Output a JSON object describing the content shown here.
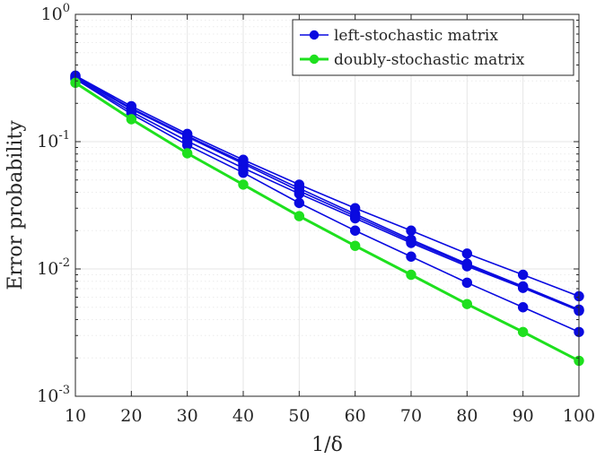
{
  "chart_data": {
    "type": "line",
    "yscale": "log",
    "xlabel": "1/δ",
    "ylabel": "Error probability",
    "xlim": [
      10,
      100
    ],
    "ylim": [
      0.001,
      1
    ],
    "grid": true,
    "legend_placement": "top-right",
    "x": [
      10,
      20,
      30,
      40,
      50,
      60,
      70,
      80,
      90,
      100
    ],
    "xticks": [
      "10",
      "20",
      "30",
      "40",
      "50",
      "60",
      "70",
      "80",
      "90",
      "100"
    ],
    "yticks": [
      {
        "value": 1,
        "base": "10",
        "exp": "0"
      },
      {
        "value": 0.1,
        "base": "10",
        "exp": "-1"
      },
      {
        "value": 0.01,
        "base": "10",
        "exp": "-2"
      },
      {
        "value": 0.001,
        "base": "10",
        "exp": "-3"
      }
    ],
    "legend": [
      {
        "label": "left-stochastic matrix",
        "color": "#0a0ae0"
      },
      {
        "label": "doubly-stochastic matrix",
        "color": "#1ee01e"
      }
    ],
    "series": [
      {
        "name": "left-stochastic matrix",
        "color": "#0a0ae0",
        "values": [
          0.33,
          0.19,
          0.115,
          0.072,
          0.046,
          0.03,
          0.02,
          0.0132,
          0.009,
          0.0061
        ]
      },
      {
        "name": "left-stochastic matrix",
        "color": "#0a0ae0",
        "values": [
          0.325,
          0.183,
          0.111,
          0.069,
          0.043,
          0.027,
          0.017,
          0.011,
          0.0073,
          0.0048
        ]
      },
      {
        "name": "left-stochastic matrix",
        "color": "#0a0ae0",
        "values": [
          0.32,
          0.18,
          0.109,
          0.067,
          0.041,
          0.026,
          0.0165,
          0.0108,
          0.0072,
          0.0047
        ]
      },
      {
        "name": "left-stochastic matrix",
        "color": "#0a0ae0",
        "values": [
          0.315,
          0.172,
          0.101,
          0.062,
          0.039,
          0.025,
          0.016,
          0.0105,
          0.0071,
          0.0047
        ]
      },
      {
        "name": "left-stochastic matrix",
        "color": "#0a0ae0",
        "values": [
          0.31,
          0.165,
          0.094,
          0.057,
          0.033,
          0.02,
          0.0125,
          0.0078,
          0.005,
          0.0032
        ]
      },
      {
        "name": "doubly-stochastic matrix",
        "color": "#1ee01e",
        "values": [
          0.29,
          0.15,
          0.081,
          0.046,
          0.026,
          0.0152,
          0.009,
          0.0053,
          0.0032,
          0.0019
        ]
      }
    ]
  }
}
